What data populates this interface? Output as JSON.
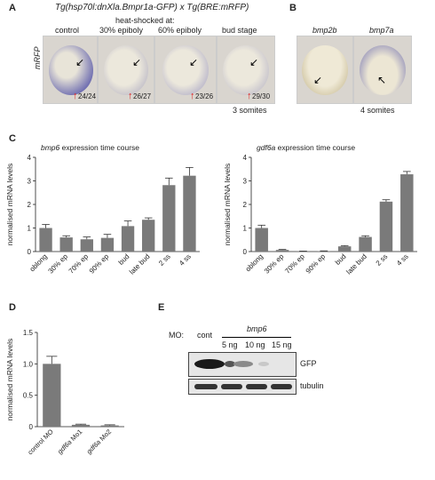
{
  "panelA": {
    "letter": "A",
    "title": "Tg(hsp70l:dnXla.Bmpr1a-GFP) x Tg(BRE:mRFP)",
    "heatshock": "heat-shocked at:",
    "ylabel": "mRFP",
    "columns": [
      {
        "label": "control",
        "count": "24/24"
      },
      {
        "label": "30% epiboly",
        "count": "26/27"
      },
      {
        "label": "60% epiboly",
        "count": "23/26"
      },
      {
        "label": "bud stage",
        "count": "29/30"
      }
    ],
    "footer": "3 somites"
  },
  "panelB": {
    "letter": "B",
    "columns": [
      {
        "label": "bmp2b"
      },
      {
        "label": "bmp7a"
      }
    ],
    "footer": "4 somites"
  },
  "panelC": {
    "letter": "C"
  },
  "panelD": {
    "letter": "D"
  },
  "panelE": {
    "letter": "E",
    "mo_label": "MO:",
    "cont": "cont",
    "gene": "bmp6",
    "doses": [
      "5 ng",
      "10 ng",
      "15 ng"
    ],
    "bands": [
      "GFP",
      "tubulin"
    ]
  },
  "chart_data": [
    {
      "type": "bar",
      "title": "bmp6 expression time course",
      "ylabel": "normalised mRNA levels",
      "ylim": [
        0,
        4
      ],
      "yticks": [
        0,
        1,
        2,
        3,
        4
      ],
      "categories": [
        "oblong",
        "30% ep",
        "70% ep",
        "90% ep",
        "bud",
        "late bud",
        "2 ss",
        "4 ss"
      ],
      "values": [
        1.0,
        0.6,
        0.52,
        0.58,
        1.08,
        1.35,
        2.82,
        3.22
      ],
      "errors": [
        0.15,
        0.07,
        0.1,
        0.15,
        0.22,
        0.08,
        0.3,
        0.35
      ]
    },
    {
      "type": "bar",
      "title": "gdf6a expression time course",
      "ylabel": "normalised mRNA levels",
      "ylim": [
        0,
        4
      ],
      "yticks": [
        0,
        1,
        2,
        3,
        4
      ],
      "categories": [
        "oblong",
        "30% ep",
        "70% ep",
        "90% ep",
        "bud",
        "late bud",
        "2 ss",
        "4 ss"
      ],
      "values": [
        1.0,
        0.07,
        0.01,
        0.02,
        0.22,
        0.62,
        2.12,
        3.28
      ],
      "errors": [
        0.12,
        0.02,
        0.01,
        0.01,
        0.03,
        0.05,
        0.08,
        0.12
      ]
    },
    {
      "type": "bar",
      "title": "",
      "ylabel": "normalised mRNA levels",
      "ylim": [
        0,
        1.5
      ],
      "yticks": [
        0,
        0.5,
        1.0,
        1.5
      ],
      "ytick_labels": [
        "0",
        "0.5",
        "1.0",
        "1.5"
      ],
      "categories": [
        "control MO",
        "gdf6a Mo1",
        "gdf6a Mo2"
      ],
      "values": [
        1.0,
        0.03,
        0.02
      ],
      "errors": [
        0.12,
        0.01,
        0.01
      ]
    }
  ]
}
